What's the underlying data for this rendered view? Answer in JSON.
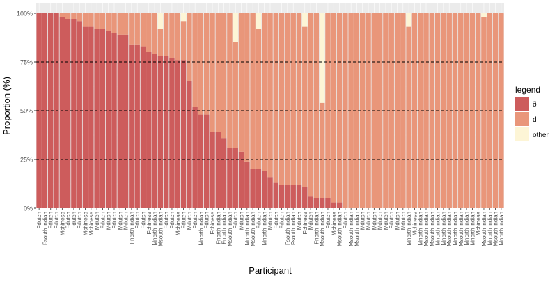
{
  "chart_data": {
    "type": "bar",
    "stacked": true,
    "xlabel": "Participant",
    "ylabel": "Proportion (%)",
    "ylim": [
      0,
      100
    ],
    "y_ticks": [
      "0%",
      "25%",
      "50%",
      "75%",
      "100%"
    ],
    "reference_lines": [
      25,
      50,
      75
    ],
    "legend": {
      "title": "legend",
      "position": "right",
      "entries": [
        {
          "label": "ð",
          "color": "#cd5c5c"
        },
        {
          "label": "d",
          "color": "#e9967a"
        },
        {
          "label": "other",
          "color": "#fdf5d6"
        }
      ]
    },
    "categories": [
      "Fdutch",
      "Fsouth indian",
      "Fdutch",
      "Fdutch",
      "Mchinese",
      "Fdutch",
      "Fdutch",
      "Fdutch",
      "Mchinese",
      "Mchinese",
      "Mdutch",
      "Fdutch",
      "Mdutch",
      "Fdutch",
      "Mdutch",
      "Mdutch",
      "Fnorth indian",
      "Fdutch",
      "Fdutch",
      "Fchinese",
      "Mnorth indian",
      "Msouth indian",
      "Fdutch",
      "Fdutch",
      "Mchinese",
      "Fdutch",
      "Mdutch",
      "Fdutch",
      "Mnorth indian",
      "Fdutch",
      "Fchinese",
      "Fnorth indian",
      "Fnorth indian",
      "Msouth indian",
      "Fdutch",
      "Mdutch",
      "Mnorth indian",
      "Msouth indian",
      "Fdutch",
      "Mnorth indian",
      "Mdutch",
      "Fdutch",
      "Fdutch",
      "Fsouth indian",
      "Fsouth indian",
      "Mdutch",
      "Fchinese",
      "Mdutch",
      "Fnorth indian",
      "Msouth indian",
      "Fdutch",
      "Mchinese",
      "Msouth indian",
      "Fdutch",
      "Msouth indian",
      "Msouth indian",
      "Mdutch",
      "Mdutch",
      "Mdutch",
      "Mdutch",
      "Mdutch",
      "Fdutch",
      "Mdutch",
      "Mdutch",
      "Mnorth indian",
      "Mchinese",
      "Mnorth indian",
      "Msouth indian",
      "Msouth indian",
      "Mnorth indian",
      "Mnorth indian",
      "Msouth indian",
      "Mnorth indian",
      "Msouth indian",
      "Mnorth indian",
      "Mnorth indian",
      "Mchinese",
      "Msouth indian",
      "Mnorth indian",
      "Msouth indian",
      "Mnorth indian"
    ],
    "series": [
      {
        "name": "ð",
        "values": [
          100,
          100,
          100,
          100,
          98,
          97,
          97,
          96,
          93,
          93,
          92,
          92,
          91,
          90,
          89,
          89,
          84,
          84,
          83,
          80,
          79,
          78,
          78,
          77,
          76,
          76,
          65,
          52,
          48,
          48,
          39,
          39,
          36,
          31,
          31,
          29,
          24,
          20,
          20,
          19,
          16,
          13,
          12,
          12,
          12,
          12,
          11,
          6,
          5,
          5,
          5,
          3,
          3,
          0,
          0,
          0,
          0,
          0,
          0,
          0,
          0,
          0,
          0,
          0,
          0,
          0,
          0,
          0,
          0,
          0,
          0,
          0,
          0,
          0,
          0,
          0,
          0,
          0,
          0,
          0,
          0
        ]
      },
      {
        "name": "d",
        "values": [
          0,
          0,
          0,
          0,
          2,
          3,
          3,
          4,
          7,
          7,
          8,
          8,
          9,
          10,
          11,
          11,
          16,
          16,
          17,
          20,
          21,
          14,
          22,
          23,
          24,
          20,
          35,
          48,
          52,
          52,
          61,
          61,
          64,
          69,
          54,
          71,
          76,
          80,
          72,
          81,
          84,
          87,
          88,
          88,
          88,
          88,
          82,
          94,
          95,
          49,
          95,
          97,
          97,
          100,
          100,
          100,
          100,
          100,
          100,
          100,
          100,
          100,
          100,
          100,
          93,
          100,
          100,
          100,
          100,
          100,
          100,
          100,
          100,
          100,
          100,
          100,
          100,
          98,
          100,
          100,
          100
        ]
      },
      {
        "name": "other",
        "values": [
          0,
          0,
          0,
          0,
          0,
          0,
          0,
          0,
          0,
          0,
          0,
          0,
          0,
          0,
          0,
          0,
          0,
          0,
          0,
          0,
          0,
          8,
          0,
          0,
          0,
          4,
          0,
          0,
          0,
          0,
          0,
          0,
          0,
          0,
          15,
          0,
          0,
          0,
          8,
          0,
          0,
          0,
          0,
          0,
          0,
          0,
          7,
          0,
          0,
          46,
          0,
          0,
          0,
          0,
          0,
          0,
          0,
          0,
          0,
          0,
          0,
          0,
          0,
          0,
          7,
          0,
          0,
          0,
          0,
          0,
          0,
          0,
          0,
          0,
          0,
          0,
          0,
          2,
          0,
          0,
          0
        ]
      }
    ]
  }
}
